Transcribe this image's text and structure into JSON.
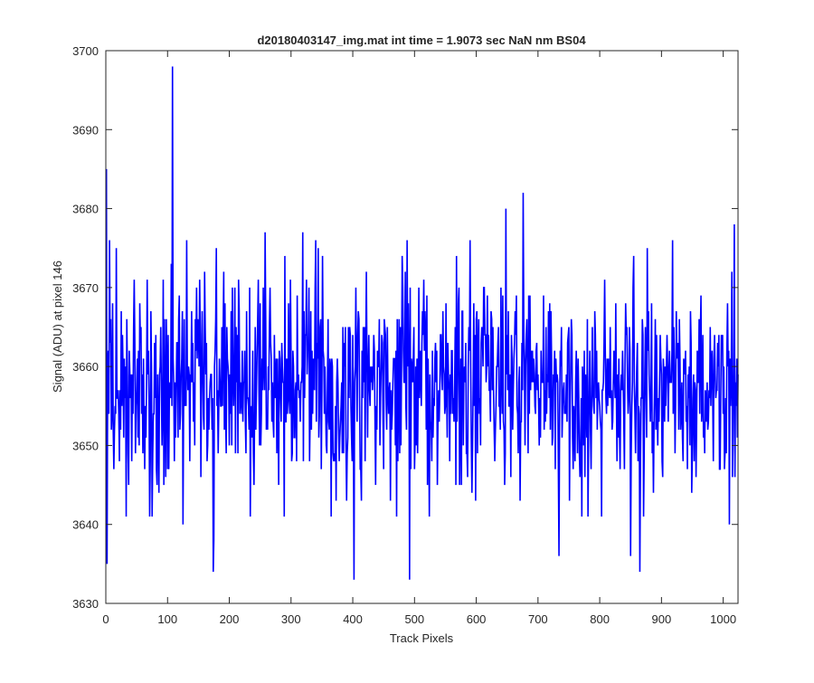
{
  "chart_data": {
    "type": "line",
    "title": "d20180403147_img.mat int time = 1.9073 sec  NaN nm BS04",
    "xlabel": "Track Pixels",
    "ylabel": "Signal (ADU) at pixel 146",
    "xlim": [
      0,
      1024
    ],
    "ylim": [
      3630,
      3700
    ],
    "xticks": [
      0,
      100,
      200,
      300,
      400,
      500,
      600,
      700,
      800,
      900,
      1000
    ],
    "yticks": [
      3630,
      3640,
      3650,
      3660,
      3670,
      3680,
      3690,
      3700
    ],
    "grid": false,
    "series_color": "#0000ff",
    "series": [
      {
        "x_start": 1,
        "x_step": 1,
        "mean": 3658,
        "noise_sd": 7,
        "count": 1024,
        "notable_points": [
          {
            "x": 1,
            "y": 3685
          },
          {
            "x": 2,
            "y": 3635
          },
          {
            "x": 108,
            "y": 3698
          },
          {
            "x": 125,
            "y": 3640
          },
          {
            "x": 174,
            "y": 3634
          },
          {
            "x": 175,
            "y": 3638
          },
          {
            "x": 258,
            "y": 3677
          },
          {
            "x": 402,
            "y": 3633
          },
          {
            "x": 492,
            "y": 3633
          },
          {
            "x": 648,
            "y": 3680
          },
          {
            "x": 676,
            "y": 3682
          },
          {
            "x": 734,
            "y": 3636
          },
          {
            "x": 850,
            "y": 3636
          },
          {
            "x": 865,
            "y": 3634
          },
          {
            "x": 1010,
            "y": 3640
          },
          {
            "x": 1018,
            "y": 3678
          }
        ]
      }
    ]
  }
}
